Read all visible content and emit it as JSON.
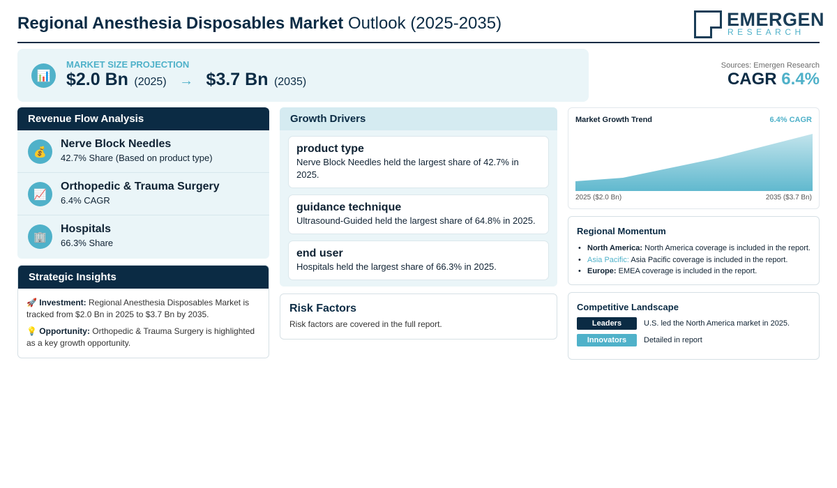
{
  "header": {
    "title_bold": "Regional Anesthesia Disposables Market",
    "title_light": "Outlook (2025-2035)",
    "logo_main": "EMERGEN",
    "logo_sub": "RESEARCH"
  },
  "projection": {
    "icon": "bar-chart-icon",
    "label": "MARKET SIZE PROJECTION",
    "start_value": "$2.0 Bn",
    "start_year": "(2025)",
    "arrow": "→",
    "end_value": "$3.7 Bn",
    "end_year": "(2035)"
  },
  "summary": {
    "sources": "Sources: Emergen Research",
    "cagr_label": "CAGR",
    "cagr_value": "6.4%"
  },
  "revenue_flow": {
    "title": "Revenue Flow Analysis",
    "items": [
      {
        "icon": "money-bag-icon",
        "emoji": "💰",
        "name": "Nerve Block Needles",
        "detail": "42.7% Share (Based on product type)"
      },
      {
        "icon": "chart-increasing-icon",
        "emoji": "📈",
        "name": "Orthopedic & Trauma Surgery",
        "detail": "6.4% CAGR"
      },
      {
        "icon": "hospital-icon",
        "emoji": "🏢",
        "name": "Hospitals",
        "detail": "66.3% Share"
      }
    ]
  },
  "strategic_insights": {
    "title": "Strategic Insights",
    "investment_icon": "🚀",
    "investment_label": "Investment:",
    "investment_text": "Regional Anesthesia Disposables Market is tracked from $2.0 Bn in 2025 to $3.7 Bn by 2035.",
    "opportunity_icon": "💡",
    "opportunity_label": "Opportunity:",
    "opportunity_text": "Orthopedic & Trauma Surgery is highlighted as a key growth opportunity."
  },
  "growth_drivers": {
    "title": "Growth Drivers",
    "items": [
      {
        "title": "product type",
        "text": "Nerve Block Needles held the largest share of 42.7% in 2025."
      },
      {
        "title": "guidance technique",
        "text": "Ultrasound-Guided held the largest share of 64.8% in 2025."
      },
      {
        "title": "end user",
        "text": "Hospitals held the largest share of 66.3% in 2025."
      }
    ]
  },
  "risk_factors": {
    "title": "Risk Factors",
    "text": "Risk factors are covered in the full report."
  },
  "trend": {
    "title": "Market Growth Trend",
    "cagr": "6.4% CAGR",
    "start_label": "2025 ($2.0 Bn)",
    "end_label": "2035 ($3.7 Bn)",
    "fill_color": "#4fb1c9"
  },
  "regional": {
    "title": "Regional Momentum",
    "items": [
      {
        "region": "North America:",
        "text": "North America coverage is included in the report."
      },
      {
        "region": "Asia Pacific:",
        "text": "Asia Pacific coverage is included in the report."
      },
      {
        "region": "Europe:",
        "text": "EMEA coverage is included in the report."
      }
    ]
  },
  "competitive": {
    "title": "Competitive Landscape",
    "leaders_label": "Leaders",
    "leaders_text": "U.S. led the North America market in 2025.",
    "innovators_label": "Innovators",
    "innovators_text": "Detailed in report",
    "leaders_color": "#0b2b44",
    "innovators_color": "#4fb1c9"
  }
}
